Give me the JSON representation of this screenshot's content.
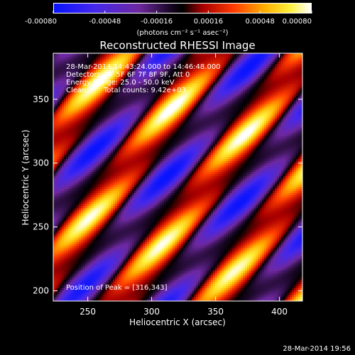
{
  "chart_data": {
    "type": "heatmap",
    "title": "Reconstructed RHESSI Image",
    "xlabel": "Heliocentric X (arcsec)",
    "ylabel": "Heliocentric Y (arcsec)",
    "xlim": [
      223,
      418
    ],
    "ylim": [
      192,
      386
    ],
    "xticks": [
      250,
      300,
      350,
      400
    ],
    "yticks": [
      200,
      250,
      300,
      350
    ],
    "colorbar": {
      "range": [
        -0.0008,
        0.0008
      ],
      "ticks": [
        "-0.00080",
        "-0.00048",
        "-0.00016",
        "0.00016",
        "0.00048",
        "0.00080"
      ],
      "unit_label": "(photons cm⁻² s⁻¹ asec⁻²)",
      "colormap": "RHESSI blue-black-red-yellow-white"
    },
    "annotations": [
      "28-Mar-2014 14:43:24.000 to 14:46:48.000",
      "Detectors: 3F 5F 6F 7F 8F 9F, Att 0",
      "Energy Range: 25.0 - 50.0 keV",
      "Clean",
      "Total counts: 9.42e+03"
    ],
    "peak_label": "Position of Peak = [316,343]",
    "peak": [
      316,
      343
    ],
    "pattern": {
      "description": "diagonal fringe pattern of alternating bright (yellow/white) and dark (blue) lobes",
      "wavelength_arcsec": 58,
      "direction_deg": 37
    },
    "timestamp": "28-Mar-2014 19:56"
  },
  "colors": {
    "background": "#000000",
    "text": "#ffffff"
  }
}
